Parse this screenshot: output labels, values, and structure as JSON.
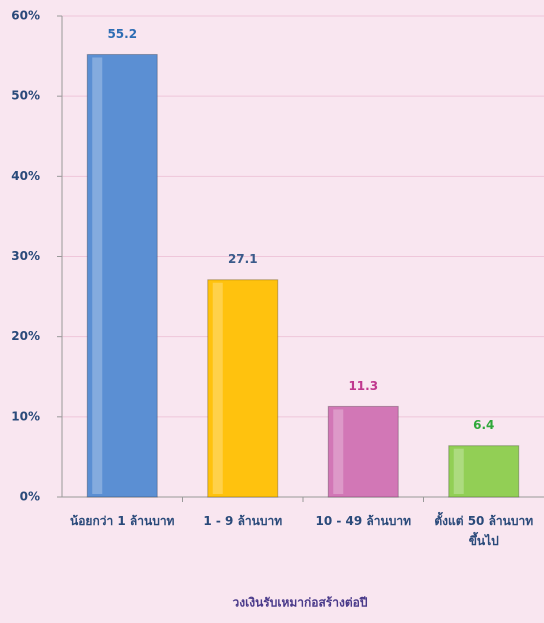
{
  "chart_data": {
    "type": "bar",
    "x_label": "วงเงินรับเหมาก่อสร้างต่อปี",
    "categories": [
      "น้อยกว่า 1 ล้านบาท",
      "1 - 9 ล้านบาท",
      "10 - 49 ล้านบาท",
      "ตั้งแต่ 50 ล้านบาท\nขึ้นไป"
    ],
    "values": [
      55.2,
      27.1,
      11.3,
      6.4
    ],
    "colors": [
      "#5b8fd3",
      "#ffc20e",
      "#d277b6",
      "#92cf55"
    ],
    "label_colors": [
      "#2e6db4",
      "#3a5a8a",
      "#c0388e",
      "#2fa83a"
    ],
    "ylim": [
      0,
      60
    ],
    "yticks": [
      {
        "value": 0,
        "label": "0%"
      },
      {
        "value": 10,
        "label": "10%"
      },
      {
        "value": 20,
        "label": "20%"
      },
      {
        "value": 30,
        "label": "30%"
      },
      {
        "value": 40,
        "label": "40%"
      },
      {
        "value": 50,
        "label": "50%"
      },
      {
        "value": 60,
        "label": "60%"
      }
    ],
    "grid": true
  }
}
